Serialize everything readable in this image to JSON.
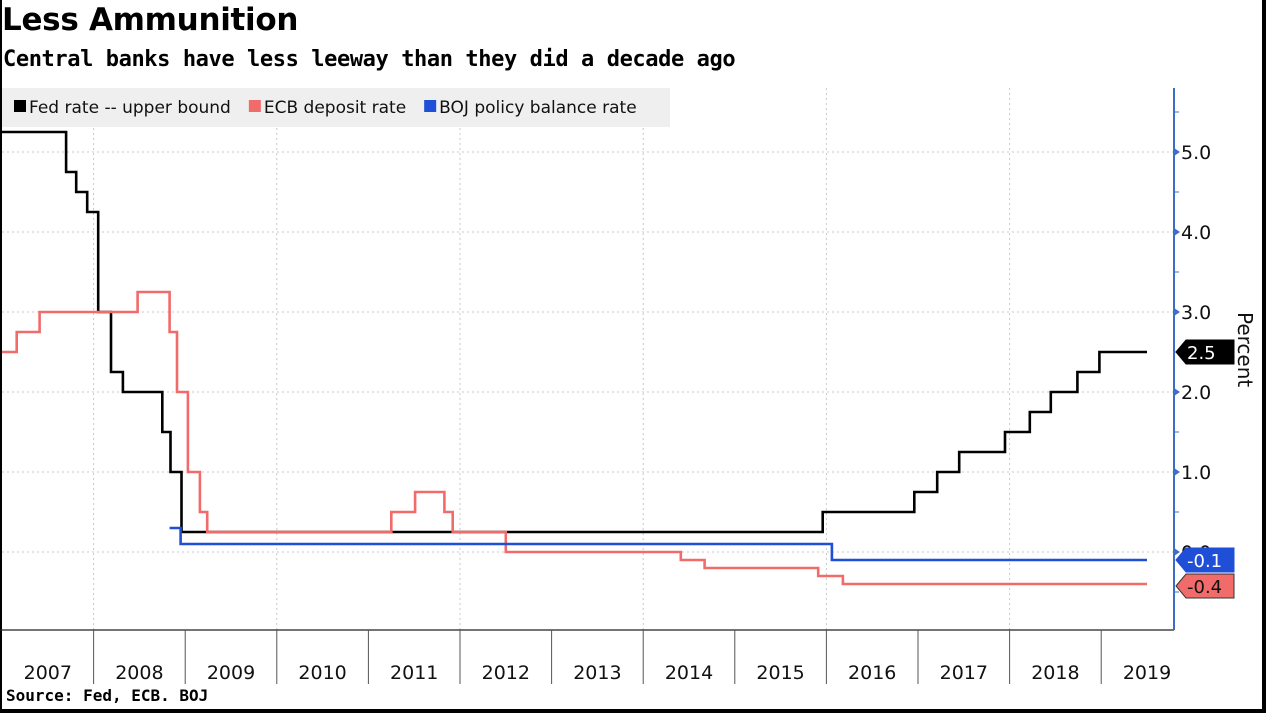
{
  "title": "Less Ammunition",
  "subtitle": "Central banks have less leeway than they did a decade ago",
  "source": "Source: Fed, ECB. BOJ",
  "chart_data": {
    "type": "line",
    "step": true,
    "title": "Less Ammunition",
    "subtitle": "Central banks have less leeway than they did a decade ago",
    "xlabel": "",
    "ylabel": "Percent",
    "xlim": [
      2007.0,
      2019.8
    ],
    "ylim": [
      -0.95,
      5.8
    ],
    "yticks": [
      0.0,
      1.0,
      2.0,
      3.0,
      4.0,
      5.0
    ],
    "ytick_labels": [
      "0.0",
      "1.0",
      "2.0",
      "3.0",
      "4.0",
      "5.0"
    ],
    "xtick_labels": [
      "2007",
      "2008",
      "2009",
      "2010",
      "2011",
      "2012",
      "2013",
      "2014",
      "2015",
      "2016",
      "2017",
      "2018",
      "2019"
    ],
    "grid": true,
    "legend_position": "top-left",
    "yaxis_side": "right",
    "series": [
      {
        "name": "Fed rate -- upper bound",
        "color": "#000000",
        "last_value_label": "2.5",
        "points": [
          [
            2007.0,
            5.25
          ],
          [
            2007.7,
            4.75
          ],
          [
            2007.81,
            4.5
          ],
          [
            2007.93,
            4.25
          ],
          [
            2008.05,
            3.0
          ],
          [
            2008.19,
            2.25
          ],
          [
            2008.32,
            2.0
          ],
          [
            2008.75,
            1.5
          ],
          [
            2008.84,
            1.0
          ],
          [
            2008.96,
            0.25
          ],
          [
            2015.96,
            0.5
          ],
          [
            2016.96,
            0.75
          ],
          [
            2017.21,
            1.0
          ],
          [
            2017.45,
            1.25
          ],
          [
            2017.95,
            1.5
          ],
          [
            2018.22,
            1.75
          ],
          [
            2018.45,
            2.0
          ],
          [
            2018.74,
            2.25
          ],
          [
            2018.98,
            2.5
          ],
          [
            2019.5,
            2.5
          ]
        ]
      },
      {
        "name": "ECB deposit rate",
        "color": "#f26b6b",
        "last_value_label": "-0.4",
        "points": [
          [
            2007.0,
            2.5
          ],
          [
            2007.16,
            2.75
          ],
          [
            2007.41,
            3.0
          ],
          [
            2008.48,
            3.25
          ],
          [
            2008.83,
            2.75
          ],
          [
            2008.91,
            2.0
          ],
          [
            2009.03,
            1.0
          ],
          [
            2009.16,
            0.5
          ],
          [
            2009.24,
            0.25
          ],
          [
            2011.25,
            0.5
          ],
          [
            2011.51,
            0.75
          ],
          [
            2011.83,
            0.5
          ],
          [
            2011.92,
            0.25
          ],
          [
            2012.5,
            0.0
          ],
          [
            2014.41,
            -0.1
          ],
          [
            2014.67,
            -0.2
          ],
          [
            2015.91,
            -0.3
          ],
          [
            2016.18,
            -0.4
          ],
          [
            2019.5,
            -0.4
          ]
        ]
      },
      {
        "name": "BOJ policy balance rate",
        "color": "#1f4fd6",
        "last_value_label": "-0.1",
        "points": [
          [
            2008.83,
            0.3
          ],
          [
            2008.95,
            0.1
          ],
          [
            2016.06,
            -0.1
          ],
          [
            2019.5,
            -0.1
          ]
        ]
      }
    ]
  }
}
